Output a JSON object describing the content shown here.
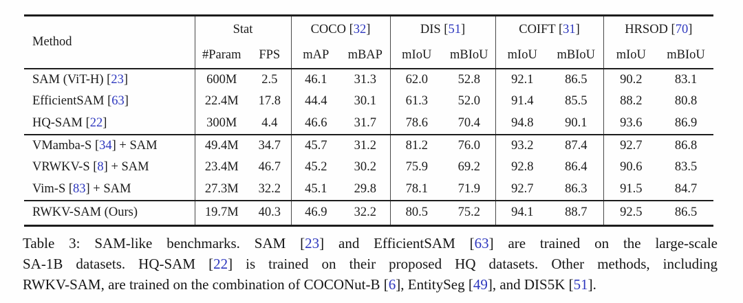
{
  "colors": {
    "background": "#ffffff",
    "text": "#1b1b1b",
    "rule": "#1c1c1c",
    "citation": "#2d37be"
  },
  "table": {
    "header": {
      "method_label": "Method",
      "groups": [
        {
          "title": [
            {
              "t": "Stat"
            }
          ],
          "sub": [
            "#Param",
            "FPS"
          ]
        },
        {
          "title": [
            {
              "t": "COCO ["
            },
            {
              "c": "32"
            },
            {
              "t": "]"
            }
          ],
          "sub": [
            "mAP",
            "mBAP"
          ]
        },
        {
          "title": [
            {
              "t": "DIS ["
            },
            {
              "c": "51"
            },
            {
              "t": "]"
            }
          ],
          "sub": [
            "mIoU",
            "mBIoU"
          ]
        },
        {
          "title": [
            {
              "t": "COIFT ["
            },
            {
              "c": "31"
            },
            {
              "t": "]"
            }
          ],
          "sub": [
            "mIoU",
            "mBIoU"
          ]
        },
        {
          "title": [
            {
              "t": "HRSOD ["
            },
            {
              "c": "70"
            },
            {
              "t": "]"
            }
          ],
          "sub": [
            "mIoU",
            "mBIoU"
          ]
        }
      ]
    },
    "blocks": [
      {
        "rows": [
          {
            "method": [
              {
                "t": "SAM (ViT-H) ["
              },
              {
                "c": "23"
              },
              {
                "t": "]"
              }
            ],
            "values": [
              "600M",
              "2.5",
              "46.1",
              "31.3",
              "62.0",
              "52.8",
              "92.1",
              "86.5",
              "90.2",
              "83.1"
            ]
          },
          {
            "method": [
              {
                "t": "EfficientSAM ["
              },
              {
                "c": "63"
              },
              {
                "t": "]"
              }
            ],
            "values": [
              "22.4M",
              "17.8",
              "44.4",
              "30.1",
              "61.3",
              "52.0",
              "91.4",
              "85.5",
              "88.2",
              "80.8"
            ]
          },
          {
            "method": [
              {
                "t": "HQ-SAM ["
              },
              {
                "c": "22"
              },
              {
                "t": "]"
              }
            ],
            "values": [
              "300M",
              "4.4",
              "46.6",
              "31.7",
              "78.6",
              "70.4",
              "94.8",
              "90.1",
              "93.6",
              "86.9"
            ]
          }
        ]
      },
      {
        "rows": [
          {
            "method": [
              {
                "t": "VMamba-S ["
              },
              {
                "c": "34"
              },
              {
                "t": "] + SAM"
              }
            ],
            "values": [
              "49.4M",
              "34.7",
              "45.7",
              "31.2",
              "81.2",
              "76.0",
              "93.2",
              "87.4",
              "92.7",
              "86.8"
            ]
          },
          {
            "method": [
              {
                "t": "VRWKV-S ["
              },
              {
                "c": "8"
              },
              {
                "t": "] + SAM"
              }
            ],
            "values": [
              "23.4M",
              "46.7",
              "45.2",
              "30.2",
              "75.9",
              "69.2",
              "92.8",
              "86.4",
              "90.6",
              "83.5"
            ]
          },
          {
            "method": [
              {
                "t": "Vim-S ["
              },
              {
                "c": "83"
              },
              {
                "t": "] + SAM"
              }
            ],
            "values": [
              "27.3M",
              "32.2",
              "45.1",
              "29.8",
              "78.1",
              "71.9",
              "92.7",
              "86.3",
              "91.5",
              "84.7"
            ]
          }
        ]
      },
      {
        "rows": [
          {
            "method": [
              {
                "t": "RWKV-SAM (Ours)"
              }
            ],
            "values": [
              "19.7M",
              "40.3",
              "46.9",
              "32.2",
              "80.5",
              "75.2",
              "94.1",
              "88.7",
              "92.5",
              "86.5"
            ]
          }
        ]
      }
    ]
  },
  "caption": {
    "lines": [
      [
        {
          "t": "Table 3: SAM-like benchmarks. SAM ["
        },
        {
          "c": "23"
        },
        {
          "t": "] and EfficientSAM ["
        },
        {
          "c": "63"
        },
        {
          "t": "] are trained on the large-scale"
        }
      ],
      [
        {
          "t": "SA-1B datasets. HQ-SAM ["
        },
        {
          "c": "22"
        },
        {
          "t": "] is trained on their proposed HQ datasets. Other methods, including"
        }
      ],
      [
        {
          "t": "RWKV-SAM, are trained on the combination of COCONut-B ["
        },
        {
          "c": "6"
        },
        {
          "t": "], EntitySeg ["
        },
        {
          "c": "49"
        },
        {
          "t": "], and DIS5K ["
        },
        {
          "c": "51"
        },
        {
          "t": "]."
        }
      ]
    ]
  }
}
